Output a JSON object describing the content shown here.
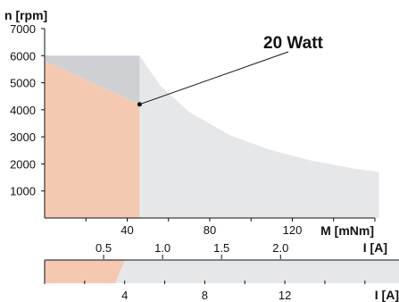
{
  "chart_data": {
    "type": "area",
    "title": "",
    "ylabel": "n [rpm]",
    "xlabel": "M [mNm]",
    "secondary_axis_label": "I [A]",
    "lower_axis_label": "I [A]",
    "annotation": "20 Watt",
    "xlim": [
      0,
      160
    ],
    "ylim": [
      0,
      7000
    ],
    "y_ticks": [
      "1000",
      "2000",
      "3000",
      "4000",
      "5000",
      "6000",
      "7000"
    ],
    "y_tick_values": [
      1000,
      2000,
      3000,
      4000,
      5000,
      6000,
      7000
    ],
    "x_ticks": [
      "40",
      "80",
      "120"
    ],
    "x_tick_values": [
      40,
      80,
      120
    ],
    "current_ticks": [
      "0.5",
      "1.0",
      "1.5",
      "2.0"
    ],
    "current_tick_values": [
      0.5,
      1.0,
      1.5,
      2.0
    ],
    "current_per_torque": 0.0175,
    "lower_ticks": [
      "4",
      "8",
      "12"
    ],
    "lower_tick_values": [
      4,
      8,
      12
    ],
    "lower_xlim": [
      0,
      16.5
    ],
    "continuous_operation": {
      "color": "#f5c9b1",
      "torque_limit": 46,
      "points": [
        [
          0,
          5800
        ],
        [
          46,
          4200
        ],
        [
          46,
          0
        ],
        [
          0,
          0
        ]
      ]
    },
    "no_load_speed_region": {
      "color": "#cfd0d3",
      "points": [
        [
          0,
          6000
        ],
        [
          46,
          6000
        ],
        [
          46,
          4200
        ],
        [
          0,
          5800
        ]
      ]
    },
    "intermittent_operation": {
      "color": "#e6e7e9",
      "torque_start": 46,
      "torque_end": 162,
      "power_w": 20,
      "speed_cap": 6000,
      "curve_points": [
        [
          46,
          6000
        ],
        [
          56,
          4900
        ],
        [
          70,
          3920
        ],
        [
          90,
          3050
        ],
        [
          110,
          2500
        ],
        [
          130,
          2110
        ],
        [
          150,
          1830
        ],
        [
          162,
          1700
        ]
      ]
    },
    "operating_point": [
      46,
      4200
    ],
    "lower_band": {
      "shaded_color": "#f5c9b1",
      "light_color": "#e6e7e9",
      "transition_start": 3.5,
      "transition_end": 4.0
    }
  }
}
